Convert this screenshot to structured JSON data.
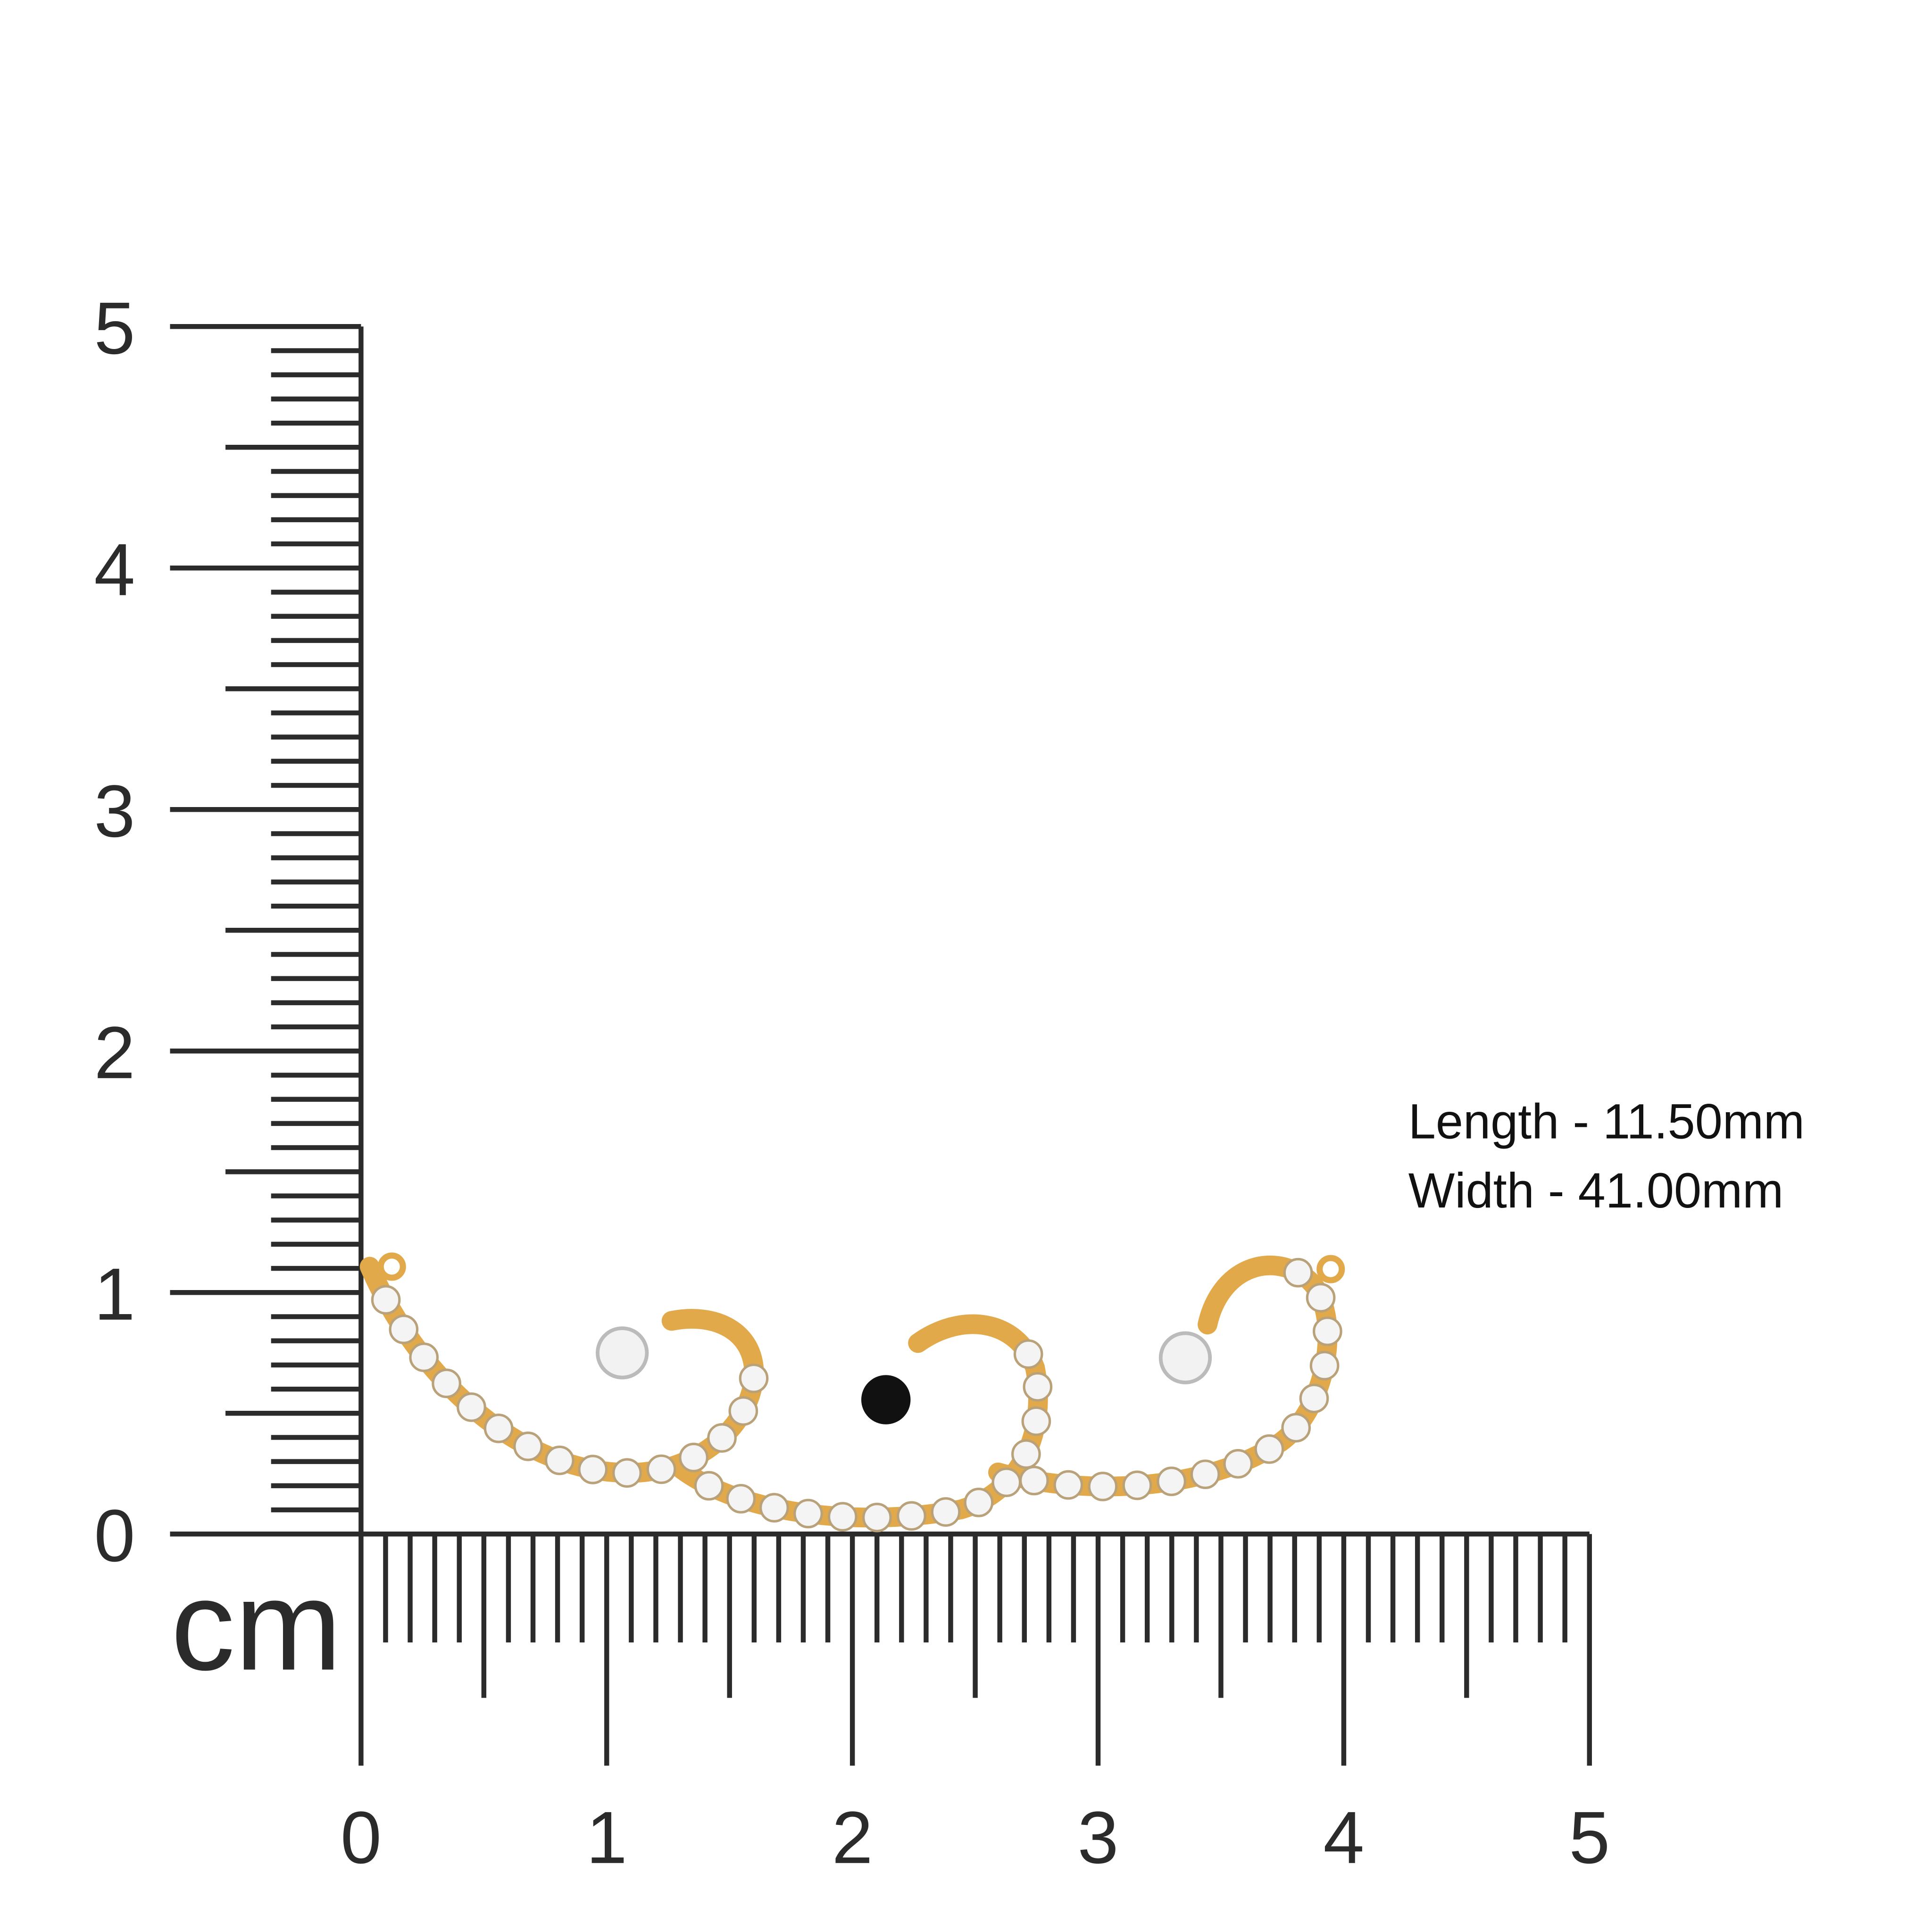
{
  "ruler": {
    "unit": "cm",
    "y_labels": [
      "0",
      "1",
      "2",
      "3",
      "4",
      "5"
    ],
    "x_labels": [
      "0",
      "1",
      "2",
      "3",
      "4",
      "5"
    ]
  },
  "dimensions": {
    "length": "Length - 11.50mm",
    "width": "Width - 41.00mm"
  }
}
